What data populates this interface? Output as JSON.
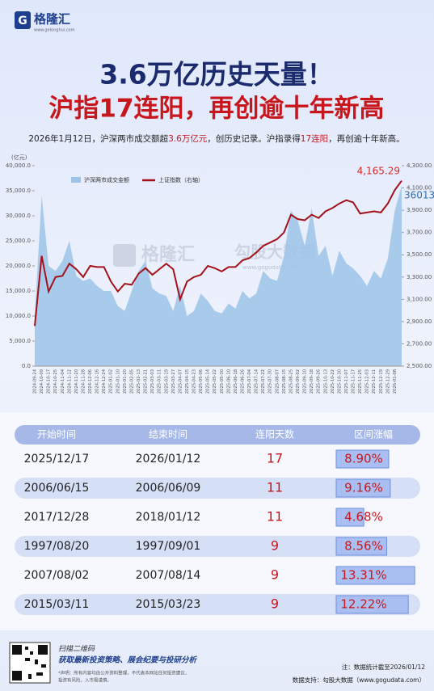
{
  "header": {
    "logo": "格隆汇",
    "logo_url": "www.gelonghui.com",
    "title": "3.6万亿历史天量！",
    "subtitle": "沪指17连阳，再创逾十年新高",
    "summary": [
      {
        "text": "2026年1月12日，沪深两市成交额超",
        "color": "#222222"
      },
      {
        "text": "3.6万亿元",
        "color": "#c8161d"
      },
      {
        "text": "，创历史记录。沪指录得",
        "color": "#222222"
      },
      {
        "text": "17连阳",
        "color": "#c8161d"
      },
      {
        "text": "，再创逾十年新高。",
        "color": "#222222"
      }
    ]
  },
  "watermarks": [
    "格隆汇",
    "勾股大数据",
    "www.gogudata.com"
  ],
  "chart_data": {
    "type": "area-line",
    "y_unit": "(亿元)",
    "categories": [
      "2024-09-24",
      "2024-10-09",
      "2024-10-17",
      "2024-10-25",
      "2024-11-04",
      "2024-11-12",
      "2024-11-20",
      "2024-11-28",
      "2024-12-06",
      "2024-12-16",
      "2024-12-24",
      "2025-01-02",
      "2025-01-10",
      "2025-01-20",
      "2025-02-05",
      "2025-02-13",
      "2025-02-21",
      "2025-03-03",
      "2025-03-11",
      "2025-03-19",
      "2025-03-27",
      "2025-04-07",
      "2025-04-15",
      "2025-04-23",
      "2025-05-06",
      "2025-05-14",
      "2025-05-22",
      "2025-05-30",
      "2025-06-10",
      "2025-06-18",
      "2025-06-26",
      "2025-07-04",
      "2025-07-14",
      "2025-07-22",
      "2025-07-30",
      "2025-08-07",
      "2025-08-15",
      "2025-08-25",
      "2025-09-02",
      "2025-09-10",
      "2025-09-18",
      "2025-09-26",
      "2025-10-13",
      "2025-10-22",
      "2025-10-30",
      "2025-11-07",
      "2025-11-17",
      "2025-11-25",
      "2025-12-03",
      "2025-12-11",
      "2025-12-19",
      "2025-12-29",
      "2026-01-08",
      null
    ],
    "series": [
      {
        "name": "沪深两市成交金额",
        "type": "area",
        "color": "#9cc3e8",
        "label_color": "#2f6fb0",
        "values": [
          10000,
          34000,
          20000,
          19000,
          21000,
          25000,
          18000,
          17000,
          17500,
          16000,
          15000,
          15000,
          12000,
          11000,
          15000,
          19000,
          21000,
          15500,
          14500,
          14000,
          11000,
          16000,
          10000,
          11000,
          14500,
          13000,
          11000,
          10500,
          12500,
          11500,
          15000,
          13500,
          14500,
          19000,
          17500,
          17000,
          22000,
          31000,
          29000,
          24000,
          31500,
          22000,
          24000,
          18000,
          23000,
          20500,
          19500,
          18000,
          16000,
          19000,
          17500,
          21500,
          31000,
          36013
        ],
        "value_labels": [
          null,
          null,
          null,
          null,
          null,
          null,
          null,
          null,
          null,
          null,
          null,
          null,
          null,
          null,
          null,
          null,
          null,
          null,
          null,
          null,
          null,
          null,
          null,
          null,
          null,
          null,
          null,
          null,
          null,
          null,
          null,
          null,
          null,
          null,
          null,
          null,
          null,
          null,
          null,
          null,
          null,
          null,
          null,
          null,
          null,
          null,
          null,
          null,
          null,
          null,
          null,
          null,
          null,
          "36013"
        ]
      },
      {
        "name": "上证指数（右轴）",
        "type": "line",
        "axis": "y2",
        "color": "#a3121a",
        "label_color": "#d42a2a",
        "values": [
          2860,
          3490,
          3170,
          3300,
          3310,
          3420,
          3370,
          3300,
          3400,
          3390,
          3390,
          3260,
          3170,
          3240,
          3230,
          3330,
          3380,
          3320,
          3370,
          3420,
          3370,
          3100,
          3260,
          3300,
          3320,
          3400,
          3380,
          3350,
          3390,
          3390,
          3450,
          3470,
          3520,
          3580,
          3610,
          3640,
          3700,
          3860,
          3820,
          3810,
          3860,
          3830,
          3890,
          3920,
          3960,
          3990,
          3970,
          3870,
          3880,
          3890,
          3880,
          3960,
          4080,
          4165.29
        ],
        "value_labels": [
          null,
          null,
          null,
          null,
          null,
          null,
          null,
          null,
          null,
          null,
          null,
          null,
          null,
          null,
          null,
          null,
          null,
          null,
          null,
          null,
          null,
          null,
          null,
          null,
          null,
          null,
          null,
          null,
          null,
          null,
          null,
          null,
          null,
          null,
          null,
          null,
          null,
          null,
          null,
          null,
          null,
          null,
          null,
          null,
          null,
          null,
          null,
          null,
          null,
          null,
          null,
          null,
          null,
          "4,165.29"
        ]
      }
    ],
    "ylim": [
      0,
      40000
    ],
    "yticks": [
      {
        "value": 0,
        "label": "0.0"
      },
      {
        "value": 5000,
        "label": "5,000.0"
      },
      {
        "value": 10000,
        "label": "10,000.0"
      },
      {
        "value": 15000,
        "label": "15,000.0"
      },
      {
        "value": 20000,
        "label": "20,000.0"
      },
      {
        "value": 25000,
        "label": "25,000.0"
      },
      {
        "value": 30000,
        "label": "30,000.0"
      },
      {
        "value": 35000,
        "label": "35,000.0"
      },
      {
        "value": 40000,
        "label": "40,000.0"
      }
    ],
    "y2lim": [
      2500,
      4300
    ],
    "y2ticks": [
      {
        "value": 2500,
        "label": "2,500.00"
      },
      {
        "value": 2700,
        "label": "2,700.00"
      },
      {
        "value": 2900,
        "label": "2,900.00"
      },
      {
        "value": 3100,
        "label": "3,100.00"
      },
      {
        "value": 3300,
        "label": "3,300.00"
      },
      {
        "value": 3500,
        "label": "3,500.00"
      },
      {
        "value": 3700,
        "label": "3,700.00"
      },
      {
        "value": 3900,
        "label": "3,900.00"
      },
      {
        "value": 4100,
        "label": "4,100.00"
      },
      {
        "value": 4300,
        "label": "4,300.00"
      }
    ],
    "legend": "top-left"
  },
  "table": {
    "columns": [
      "开始时间",
      "结束时间",
      "连阳天数",
      "区间涨幅"
    ],
    "rows": [
      [
        "2025/12/17",
        "2026/01/12",
        17,
        8.9
      ],
      [
        "2006/06/15",
        "2006/06/09",
        11,
        9.16
      ],
      [
        "2017/12/28",
        "2018/01/12",
        11,
        4.68
      ],
      [
        "1997/08/20",
        "1997/09/01",
        9,
        8.56
      ],
      [
        "2007/08/02",
        "2007/08/14",
        9,
        13.31
      ],
      [
        "2015/03/11",
        "2015/03/23",
        9,
        12.22
      ]
    ],
    "gain_labels": [
      "8.90%",
      "9.16%",
      "4.68%",
      "8.56%",
      "13.31%",
      "12.22%"
    ]
  },
  "footer": {
    "qr_caption": "扫描二维码",
    "qr_slogan": "获取最新投资策略、展会纪要与投研分析",
    "disclaimer": [
      "*声明：所有内容均由公开资料整理，不代表本网站任何投资建议，",
      "投资有风险，入市需谨慎。"
    ],
    "note": "注：数据统计截至2026/01/12",
    "source": "数据支持：勾股大数据（www.gogudata.com）"
  }
}
